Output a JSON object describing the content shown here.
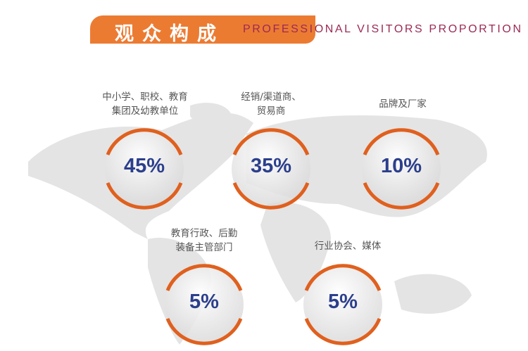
{
  "header": {
    "title_cn": "观众构成",
    "title_en": "PROFESSIONAL VISITORS PROPORTION"
  },
  "segments": [
    {
      "label_lines": [
        "中小学、职校、教育",
        "集团及幼教单位"
      ],
      "percent": "45%",
      "value": 45
    },
    {
      "label_lines": [
        "经销/渠道商、",
        "贸易商"
      ],
      "percent": "35%",
      "value": 35
    },
    {
      "label_lines": [
        "品牌及厂家"
      ],
      "percent": "10%",
      "value": 10
    },
    {
      "label_lines": [
        "教育行政、后勤",
        "装备主管部门"
      ],
      "percent": "5%",
      "value": 5
    },
    {
      "label_lines": [
        "行业协会、媒体"
      ],
      "percent": "5%",
      "value": 5
    }
  ],
  "colors": {
    "accent": "#ec7b32",
    "ring": "#e0601e",
    "percent_text": "#2c3f8c",
    "title_en": "#9b2a55",
    "map": "#e3e3e3"
  }
}
